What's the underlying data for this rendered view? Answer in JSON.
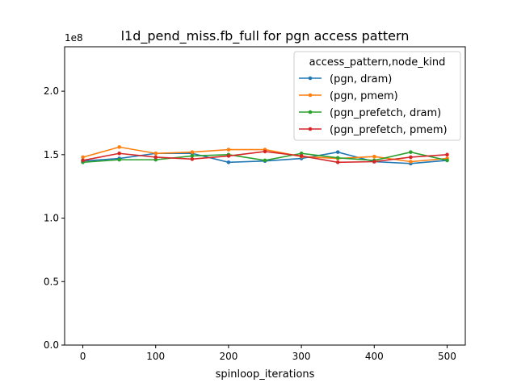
{
  "chart_data": {
    "type": "line",
    "title": "l1d_pend_miss.fb_full for pgn access pattern",
    "xlabel": "spinloop_iterations",
    "ylabel": "",
    "y_offset_label": "1e8",
    "y_scale": 100000000,
    "x": [
      0,
      50,
      100,
      150,
      200,
      250,
      300,
      350,
      400,
      450,
      500
    ],
    "xlim": [
      -25,
      525
    ],
    "ylim": [
      0,
      235000000
    ],
    "x_ticks": [
      0,
      100,
      200,
      300,
      400,
      500
    ],
    "x_tick_labels": [
      "0",
      "100",
      "200",
      "300",
      "400",
      "500"
    ],
    "y_ticks": [
      0,
      50000000,
      100000000,
      150000000,
      200000000
    ],
    "y_tick_labels": [
      "0.0",
      "0.5",
      "1.0",
      "1.5",
      "2.0"
    ],
    "grid": false,
    "legend": {
      "title": "access_pattern,node_kind",
      "placement": "top-right"
    },
    "series": [
      {
        "name": "(pgn, dram)",
        "color": "#1f77b4",
        "values": [
          145000000,
          147000000,
          151000000,
          151000000,
          144000000,
          145000000,
          147000000,
          152000000,
          144500000,
          143000000,
          145500000
        ]
      },
      {
        "name": "(pgn, pmem)",
        "color": "#ff7f0e",
        "values": [
          148000000,
          156000000,
          151000000,
          152000000,
          154000000,
          154000000,
          148500000,
          147000000,
          148500000,
          144500000,
          147000000
        ]
      },
      {
        "name": "(pgn_prefetch, dram)",
        "color": "#2ca02c",
        "values": [
          144000000,
          146000000,
          146000000,
          149000000,
          150000000,
          145500000,
          151000000,
          147500000,
          145500000,
          152000000,
          145500000
        ]
      },
      {
        "name": "(pgn_prefetch, pmem)",
        "color": "#d62728",
        "values": [
          145500000,
          151000000,
          148000000,
          146500000,
          149000000,
          152500000,
          149000000,
          144000000,
          144500000,
          148000000,
          150000000
        ]
      }
    ]
  }
}
